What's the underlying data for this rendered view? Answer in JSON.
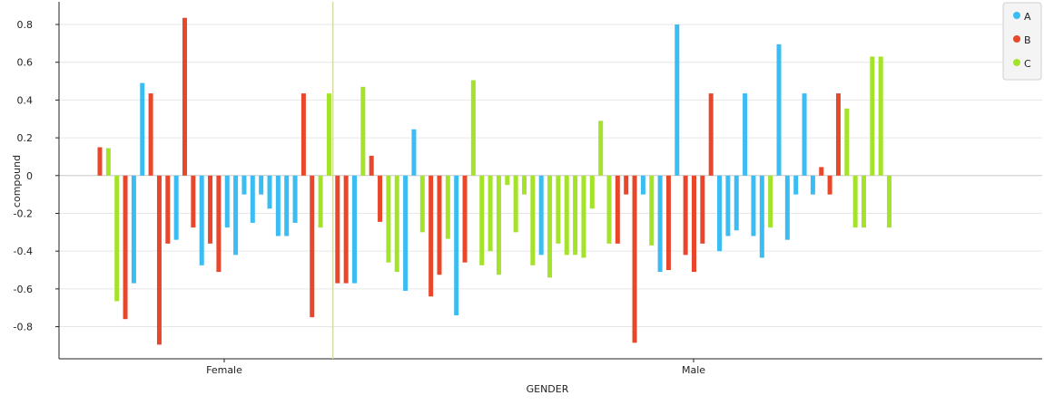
{
  "chart_data": {
    "type": "bar",
    "xlabel": "GENDER",
    "ylabel": "compound",
    "categories": [
      "Female",
      "Male"
    ],
    "ylim": [
      -0.97,
      0.92
    ],
    "yticks": [
      -0.8,
      -0.6,
      -0.4,
      -0.2,
      0,
      0.2,
      0.4,
      0.6,
      0.8
    ],
    "ytick_labels": [
      "-0.8",
      "-0.6",
      "-0.4",
      "-0.2",
      "0",
      "0.2",
      "0.4",
      "0.6",
      "0.8"
    ],
    "grid": true,
    "legend_position": "top-right",
    "series": [
      {
        "name": "A",
        "color": "#3bbcf2"
      },
      {
        "name": "B",
        "color": "#e8472b"
      },
      {
        "name": "C",
        "color": "#a4e32a"
      }
    ],
    "bars": [
      {
        "group": "Female",
        "series": "B",
        "value": 0.15
      },
      {
        "group": "Female",
        "series": "C",
        "value": 0.145
      },
      {
        "group": "Female",
        "series": "C",
        "value": -0.665
      },
      {
        "group": "Female",
        "series": "B",
        "value": -0.76
      },
      {
        "group": "Female",
        "series": "A",
        "value": -0.57
      },
      {
        "group": "Female",
        "series": "A",
        "value": 0.49
      },
      {
        "group": "Female",
        "series": "B",
        "value": 0.435
      },
      {
        "group": "Female",
        "series": "B",
        "value": -0.895
      },
      {
        "group": "Female",
        "series": "B",
        "value": -0.36
      },
      {
        "group": "Female",
        "series": "A",
        "value": -0.34
      },
      {
        "group": "Female",
        "series": "B",
        "value": 0.835
      },
      {
        "group": "Female",
        "series": "B",
        "value": -0.275
      },
      {
        "group": "Female",
        "series": "A",
        "value": -0.475
      },
      {
        "group": "Female",
        "series": "B",
        "value": -0.36
      },
      {
        "group": "Female",
        "series": "B",
        "value": -0.51
      },
      {
        "group": "Female",
        "series": "A",
        "value": -0.275
      },
      {
        "group": "Female",
        "series": "A",
        "value": -0.42
      },
      {
        "group": "Female",
        "series": "A",
        "value": -0.1
      },
      {
        "group": "Female",
        "series": "A",
        "value": -0.25
      },
      {
        "group": "Female",
        "series": "A",
        "value": -0.1
      },
      {
        "group": "Female",
        "series": "A",
        "value": -0.175
      },
      {
        "group": "Female",
        "series": "A",
        "value": -0.32
      },
      {
        "group": "Female",
        "series": "A",
        "value": -0.32
      },
      {
        "group": "Female",
        "series": "A",
        "value": -0.25
      },
      {
        "group": "Female",
        "series": "B",
        "value": 0.435
      },
      {
        "group": "Female",
        "series": "B",
        "value": -0.75
      },
      {
        "group": "Female",
        "series": "C",
        "value": -0.275
      },
      {
        "group": "Female",
        "series": "C",
        "value": 0.435
      },
      {
        "group": "Male",
        "series": "B",
        "value": -0.57
      },
      {
        "group": "Male",
        "series": "B",
        "value": -0.57
      },
      {
        "group": "Male",
        "series": "A",
        "value": -0.57
      },
      {
        "group": "Male",
        "series": "C",
        "value": 0.47
      },
      {
        "group": "Male",
        "series": "B",
        "value": 0.105
      },
      {
        "group": "Male",
        "series": "B",
        "value": -0.245
      },
      {
        "group": "Male",
        "series": "C",
        "value": -0.46
      },
      {
        "group": "Male",
        "series": "C",
        "value": -0.51
      },
      {
        "group": "Male",
        "series": "A",
        "value": -0.61
      },
      {
        "group": "Male",
        "series": "A",
        "value": 0.245
      },
      {
        "group": "Male",
        "series": "C",
        "value": -0.3
      },
      {
        "group": "Male",
        "series": "B",
        "value": -0.64
      },
      {
        "group": "Male",
        "series": "B",
        "value": -0.525
      },
      {
        "group": "Male",
        "series": "C",
        "value": -0.335
      },
      {
        "group": "Male",
        "series": "A",
        "value": -0.74
      },
      {
        "group": "Male",
        "series": "B",
        "value": -0.46
      },
      {
        "group": "Male",
        "series": "C",
        "value": 0.505
      },
      {
        "group": "Male",
        "series": "C",
        "value": -0.475
      },
      {
        "group": "Male",
        "series": "C",
        "value": -0.4
      },
      {
        "group": "Male",
        "series": "C",
        "value": -0.525
      },
      {
        "group": "Male",
        "series": "C",
        "value": -0.05
      },
      {
        "group": "Male",
        "series": "C",
        "value": -0.3
      },
      {
        "group": "Male",
        "series": "C",
        "value": -0.1
      },
      {
        "group": "Male",
        "series": "C",
        "value": -0.475
      },
      {
        "group": "Male",
        "series": "A",
        "value": -0.42
      },
      {
        "group": "Male",
        "series": "C",
        "value": -0.54
      },
      {
        "group": "Male",
        "series": "C",
        "value": -0.36
      },
      {
        "group": "Male",
        "series": "C",
        "value": -0.42
      },
      {
        "group": "Male",
        "series": "C",
        "value": -0.42
      },
      {
        "group": "Male",
        "series": "C",
        "value": -0.435
      },
      {
        "group": "Male",
        "series": "C",
        "value": -0.175
      },
      {
        "group": "Male",
        "series": "C",
        "value": 0.29
      },
      {
        "group": "Male",
        "series": "C",
        "value": -0.36
      },
      {
        "group": "Male",
        "series": "B",
        "value": -0.36
      },
      {
        "group": "Male",
        "series": "B",
        "value": -0.1
      },
      {
        "group": "Male",
        "series": "B",
        "value": -0.885
      },
      {
        "group": "Male",
        "series": "A",
        "value": -0.1
      },
      {
        "group": "Male",
        "series": "C",
        "value": -0.37
      },
      {
        "group": "Male",
        "series": "A",
        "value": -0.51
      },
      {
        "group": "Male",
        "series": "B",
        "value": -0.5
      },
      {
        "group": "Male",
        "series": "A",
        "value": 0.8
      },
      {
        "group": "Male",
        "series": "B",
        "value": -0.42
      },
      {
        "group": "Male",
        "series": "B",
        "value": -0.51
      },
      {
        "group": "Male",
        "series": "B",
        "value": -0.36
      },
      {
        "group": "Male",
        "series": "B",
        "value": 0.435
      },
      {
        "group": "Male",
        "series": "A",
        "value": -0.4
      },
      {
        "group": "Male",
        "series": "A",
        "value": -0.32
      },
      {
        "group": "Male",
        "series": "A",
        "value": -0.29
      },
      {
        "group": "Male",
        "series": "A",
        "value": 0.435
      },
      {
        "group": "Male",
        "series": "A",
        "value": -0.32
      },
      {
        "group": "Male",
        "series": "A",
        "value": -0.435
      },
      {
        "group": "Male",
        "series": "C",
        "value": -0.275
      },
      {
        "group": "Male",
        "series": "A",
        "value": 0.695
      },
      {
        "group": "Male",
        "series": "A",
        "value": -0.34
      },
      {
        "group": "Male",
        "series": "A",
        "value": -0.1
      },
      {
        "group": "Male",
        "series": "A",
        "value": 0.435
      },
      {
        "group": "Male",
        "series": "A",
        "value": -0.1
      },
      {
        "group": "Male",
        "series": "B",
        "value": 0.045
      },
      {
        "group": "Male",
        "series": "B",
        "value": -0.1
      },
      {
        "group": "Male",
        "series": "B",
        "value": 0.435
      },
      {
        "group": "Male",
        "series": "C",
        "value": 0.355
      },
      {
        "group": "Male",
        "series": "C",
        "value": -0.275
      },
      {
        "group": "Male",
        "series": "C",
        "value": -0.275
      },
      {
        "group": "Male",
        "series": "C",
        "value": 0.63
      },
      {
        "group": "Male",
        "series": "C",
        "value": 0.63
      },
      {
        "group": "Male",
        "series": "C",
        "value": -0.275
      }
    ]
  }
}
